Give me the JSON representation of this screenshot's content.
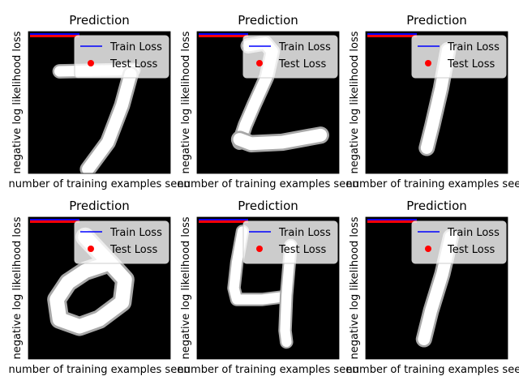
{
  "chart_data": [
    {
      "type": "image",
      "title": "Prediction",
      "xlabel": "number of training examples seen",
      "ylabel": "negative log likelihood loss",
      "legend": {
        "placement": "top-right",
        "entries": [
          {
            "label": "Train Loss",
            "color": "#0000ff",
            "marker": "line"
          },
          {
            "label": "Test Loss",
            "color": "#ff0000",
            "marker": "dot"
          }
        ]
      },
      "digit": "7",
      "x_ticks": [],
      "y_ticks": []
    },
    {
      "type": "image",
      "title": "Prediction",
      "xlabel": "number of training examples seen",
      "ylabel": "negative log likelihood loss",
      "legend": {
        "placement": "top-right",
        "entries": [
          {
            "label": "Train Loss",
            "color": "#0000ff",
            "marker": "line"
          },
          {
            "label": "Test Loss",
            "color": "#ff0000",
            "marker": "dot"
          }
        ]
      },
      "digit": "2",
      "x_ticks": [],
      "y_ticks": []
    },
    {
      "type": "image",
      "title": "Prediction",
      "xlabel": "number of training examples seen",
      "ylabel": "negative log likelihood loss",
      "legend": {
        "placement": "top-right",
        "entries": [
          {
            "label": "Train Loss",
            "color": "#0000ff",
            "marker": "line"
          },
          {
            "label": "Test Loss",
            "color": "#ff0000",
            "marker": "dot"
          }
        ]
      },
      "digit": "1",
      "x_ticks": [],
      "y_ticks": []
    },
    {
      "type": "image",
      "title": "Prediction",
      "xlabel": "number of training examples seen",
      "ylabel": "negative log likelihood loss",
      "legend": {
        "placement": "top-right",
        "entries": [
          {
            "label": "Train Loss",
            "color": "#0000ff",
            "marker": "line"
          },
          {
            "label": "Test Loss",
            "color": "#ff0000",
            "marker": "dot"
          }
        ]
      },
      "digit": "0",
      "x_ticks": [],
      "y_ticks": []
    },
    {
      "type": "image",
      "title": "Prediction",
      "xlabel": "number of training examples seen",
      "ylabel": "negative log likelihood loss",
      "legend": {
        "placement": "top-right",
        "entries": [
          {
            "label": "Train Loss",
            "color": "#0000ff",
            "marker": "line"
          },
          {
            "label": "Test Loss",
            "color": "#ff0000",
            "marker": "dot"
          }
        ]
      },
      "digit": "4",
      "x_ticks": [],
      "y_ticks": []
    },
    {
      "type": "image",
      "title": "Prediction",
      "xlabel": "number of training examples seen",
      "ylabel": "negative log likelihood loss",
      "legend": {
        "placement": "top-right",
        "entries": [
          {
            "label": "Train Loss",
            "color": "#0000ff",
            "marker": "line"
          },
          {
            "label": "Test Loss",
            "color": "#ff0000",
            "marker": "dot"
          }
        ]
      },
      "digit": "1",
      "x_ticks": [],
      "y_ticks": []
    }
  ]
}
